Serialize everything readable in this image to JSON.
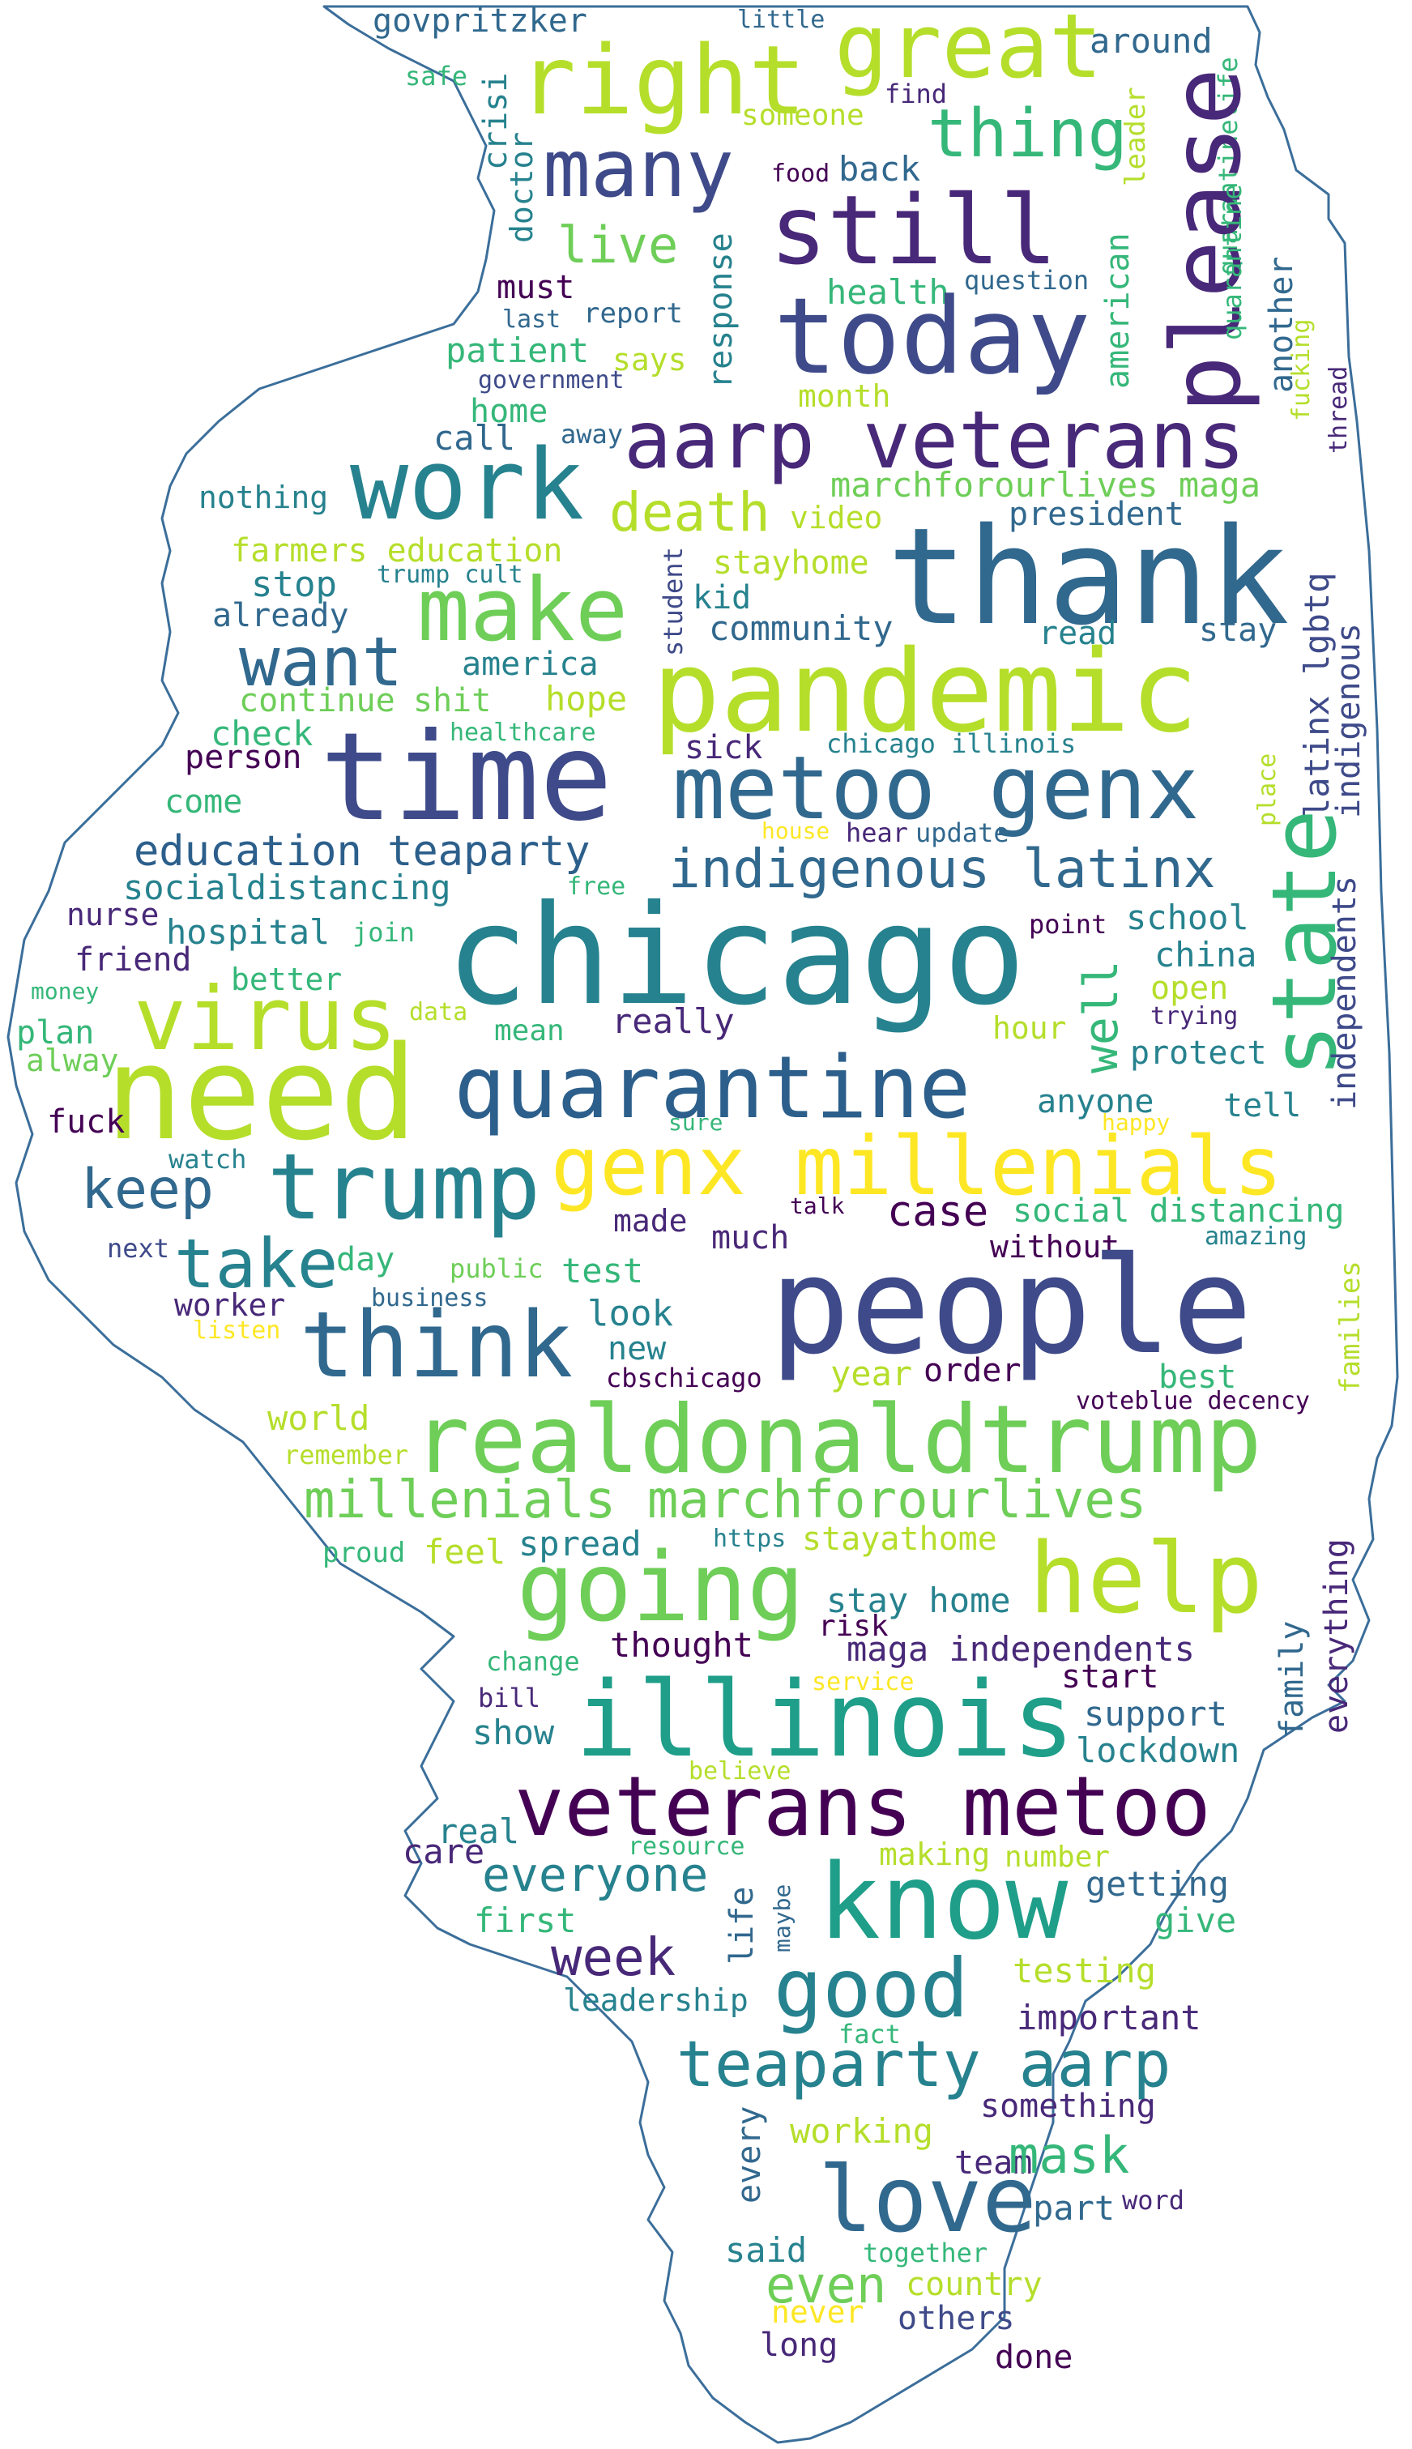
{
  "palette": {
    "c1": "#440154",
    "c2": "#482878",
    "c3": "#3e4a89",
    "c4": "#31688e",
    "c5": "#26828e",
    "c6": "#1f9e89",
    "c7": "#35b779",
    "c8": "#6ece58",
    "c9": "#b5de2b",
    "c10": "#fde725",
    "outline": "#3b6e9a"
  },
  "words": {
    "govpritzker": "govpritzker",
    "little": "little",
    "great": "great",
    "around": "around",
    "right": "right",
    "safe": "safe",
    "crisi": "crisi",
    "find": "find",
    "leader": "leader",
    "quarantinelife": "quarantinelife",
    "someone": "someone",
    "thing": "thing",
    "please": "please",
    "many": "many",
    "doctor": "doctor",
    "food": "food",
    "back": "back",
    "still": "still",
    "live": "live",
    "response": "response",
    "question": "question",
    "american": "american",
    "must": "must",
    "health": "health",
    "quarantine_v": "quarantine",
    "another": "another",
    "last": "last",
    "report": "report",
    "today": "today",
    "fucking": "fucking",
    "patient": "patient",
    "says": "says",
    "government": "government",
    "thread": "thread",
    "month": "month",
    "home": "home",
    "call": "call",
    "away": "away",
    "aarp_veterans": "aarp veterans",
    "nothing": "nothing",
    "work": "work",
    "marchforourlives_maga": "marchforourlives maga",
    "death": "death",
    "video": "video",
    "president": "president",
    "farmers_education": "farmers education",
    "thank": "thank",
    "stop": "stop",
    "trump_cult": "trump cult",
    "student": "student",
    "stayhome": "stayhome",
    "make": "make",
    "already": "already",
    "kid": "kid",
    "community": "community",
    "read": "read",
    "stay": "stay",
    "latinx_lgbtq": "latinx lgbtq",
    "want": "want",
    "america": "america",
    "pandemic": "pandemic",
    "indigenous": "indigenous",
    "continue": "continue",
    "shit": "shit",
    "hope": "hope",
    "check": "check",
    "healthcare": "healthcare",
    "sick": "sick",
    "chicago_illinois": "chicago illinois",
    "person": "person",
    "time": "time",
    "metoo_genx": "metoo genx",
    "place": "place",
    "come": "come",
    "house": "house",
    "hear": "hear",
    "update": "update",
    "education_teaparty": "education teaparty",
    "indigenous_latinx": "indigenous latinx",
    "state": "state",
    "socialdistancing": "socialdistancing",
    "free": "free",
    "nurse": "nurse",
    "school": "school",
    "independents": "independents",
    "friend": "friend",
    "hospital": "hospital",
    "join": "join",
    "chicago": "chicago",
    "point": "point",
    "china": "china",
    "money": "money",
    "better": "better",
    "well": "well",
    "open": "open",
    "virus": "virus",
    "plan": "plan",
    "data": "data",
    "mean": "mean",
    "really": "really",
    "hour": "hour",
    "trying": "trying",
    "alway": "alway",
    "protect": "protect",
    "need": "need",
    "quarantine": "quarantine",
    "anyone": "anyone",
    "fuck": "fuck",
    "sure": "sure",
    "happy": "happy",
    "tell": "tell",
    "watch": "watch",
    "genx_millenials": "genx millenials",
    "keep": "keep",
    "trump": "trump",
    "talk": "talk",
    "case": "case",
    "social_distancing": "social distancing",
    "made": "made",
    "next": "next",
    "take": "take",
    "day": "day",
    "much": "much",
    "without": "without",
    "amazing": "amazing",
    "families": "families",
    "public": "public",
    "test": "test",
    "worker": "worker",
    "business": "business",
    "people": "people",
    "look": "look",
    "listen": "listen",
    "think": "think",
    "new": "new",
    "cbschicago": "cbschicago",
    "year": "year",
    "order": "order",
    "best": "best",
    "voteblue_decency": "voteblue decency",
    "world": "world",
    "realdonaldtrump": "realdonaldtrump",
    "remember": "remember",
    "millenials_marchforourlives": "millenials marchforourlives",
    "https": "https",
    "stayathome": "stayathome",
    "proud": "proud",
    "feel": "feel",
    "spread": "spread",
    "help": "help",
    "going": "going",
    "everything": "everything",
    "stay_home": "stay home",
    "risk": "risk",
    "change": "change",
    "thought": "thought",
    "maga_independents": "maga independents",
    "family": "family",
    "bill": "bill",
    "service": "service",
    "start": "start",
    "illinois": "illinois",
    "show": "show",
    "support": "support",
    "lockdown": "lockdown",
    "believe": "believe",
    "veterans_metoo": "veterans metoo",
    "real": "real",
    "resource": "resource",
    "care": "care",
    "making": "making",
    "number": "number",
    "everyone": "everyone",
    "know": "know",
    "getting": "getting",
    "first": "first",
    "life": "life",
    "maybe": "maybe",
    "give": "give",
    "week": "week",
    "good": "good",
    "testing": "testing",
    "leadership": "leadership",
    "important": "important",
    "fact": "fact",
    "teaparty_aarp": "teaparty aarp",
    "something": "something",
    "every": "every",
    "working": "working",
    "team": "team",
    "mask": "mask",
    "love": "love",
    "part": "part",
    "word": "word",
    "said": "said",
    "together": "together",
    "even": "even",
    "country": "country",
    "never": "never",
    "others": "others",
    "long": "long",
    "done": "done"
  }
}
